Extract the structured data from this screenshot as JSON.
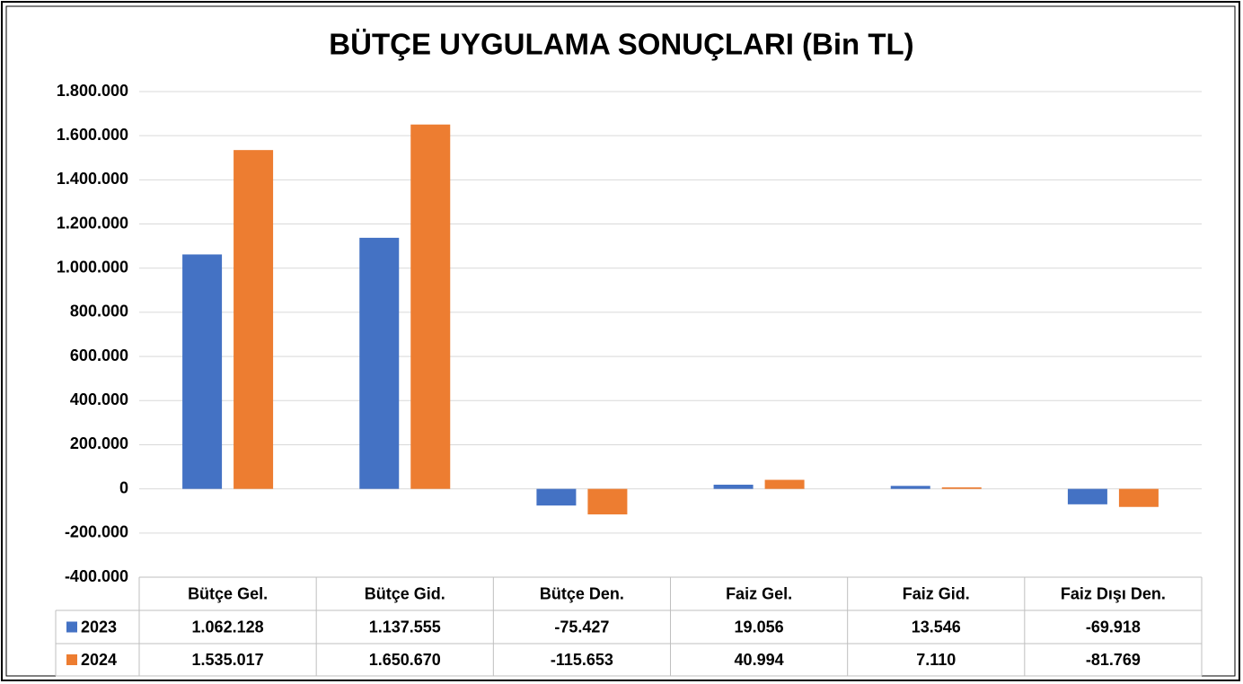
{
  "chart_data": {
    "type": "bar",
    "title": "BÜTÇE UYGULAMA SONUÇLARI (Bin TL)",
    "categories": [
      "Bütçe Gel.",
      "Bütçe Gid.",
      "Bütçe Den.",
      "Faiz Gel.",
      "Faiz Gid.",
      "Faiz Dışı Den."
    ],
    "series": [
      {
        "name": "2023",
        "color": "#4472c4",
        "values": [
          1062128,
          1137555,
          -75427,
          19056,
          13546,
          -69918
        ],
        "value_labels": [
          "1.062.128",
          "1.137.555",
          "-75.427",
          "19.056",
          "13.546",
          "-69.918"
        ]
      },
      {
        "name": "2024",
        "color": "#ed7d31",
        "values": [
          1535017,
          1650670,
          -115653,
          40994,
          7110,
          -81769
        ],
        "value_labels": [
          "1.535.017",
          "1.650.670",
          "-115.653",
          "40.994",
          "7.110",
          "-81.769"
        ]
      }
    ],
    "ylim": [
      -400000,
      1800000
    ],
    "yticks": [
      {
        "value": -400000,
        "label": "-400.000"
      },
      {
        "value": -200000,
        "label": "-200.000"
      },
      0,
      {
        "value": 200000,
        "label": "200.000"
      },
      {
        "value": 400000,
        "label": "400.000"
      },
      {
        "value": 600000,
        "label": "600.000"
      },
      {
        "value": 800000,
        "label": "800.000"
      },
      {
        "value": 1000000,
        "label": "1.000.000"
      },
      {
        "value": 1200000,
        "label": "1.200.000"
      },
      {
        "value": 1400000,
        "label": "1.400.000"
      },
      {
        "value": 1600000,
        "label": "1.600.000"
      },
      {
        "value": 1800000,
        "label": "1.800.000"
      }
    ],
    "grid": true,
    "legend": "table"
  }
}
